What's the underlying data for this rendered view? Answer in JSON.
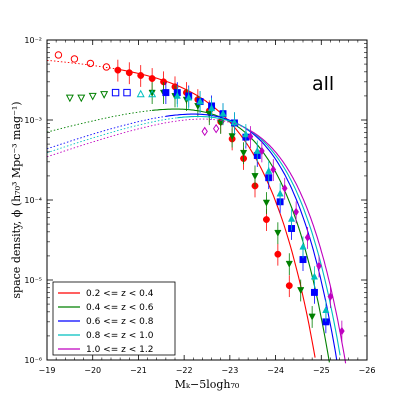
{
  "chart_data": {
    "type": "scatter",
    "title": "",
    "annotation": "all",
    "xlabel": "M_K−5logh_70",
    "xlabel_display": "Mₖ−5logh₇₀",
    "ylabel": "space density, ϕ (h₇₀³ Mpc⁻³ mag⁻¹)",
    "xlim": [
      -19,
      -26
    ],
    "ylim": [
      1e-06,
      0.01
    ],
    "yscale": "log",
    "grid": false,
    "legend_position": "lower-left",
    "x_ticks": [
      -19,
      -20,
      -21,
      -22,
      -23,
      -24,
      -25,
      -26
    ],
    "x_tick_labels": [
      "−19",
      "−20",
      "−21",
      "−22",
      "−23",
      "−24",
      "−25",
      "−26"
    ],
    "y_ticks": [
      1e-06,
      1e-05,
      0.0001,
      0.001,
      0.01
    ],
    "y_tick_labels": [
      "10⁻⁶",
      "10⁻⁵",
      "10⁻⁴",
      "10⁻³",
      "10⁻²"
    ],
    "series": [
      {
        "name": "0.2 <= z < 0.4",
        "color": "#ff0000",
        "marker": "circle",
        "fit": {
          "phi_star": 0.0045,
          "m_star": -22.6,
          "alpha": -1.1
        },
        "open_points": [
          {
            "x": -19.25,
            "y": 0.0065
          },
          {
            "x": -19.6,
            "y": 0.0058
          },
          {
            "x": -19.95,
            "y": 0.0051
          },
          {
            "x": -20.3,
            "y": 0.0046
          }
        ],
        "points": [
          {
            "x": -20.55,
            "y": 0.0042
          },
          {
            "x": -20.8,
            "y": 0.0039
          },
          {
            "x": -21.05,
            "y": 0.0036
          },
          {
            "x": -21.3,
            "y": 0.0033
          },
          {
            "x": -21.55,
            "y": 0.003
          },
          {
            "x": -21.8,
            "y": 0.0026
          },
          {
            "x": -22.05,
            "y": 0.0022
          },
          {
            "x": -22.3,
            "y": 0.0018
          },
          {
            "x": -22.55,
            "y": 0.0013
          },
          {
            "x": -22.8,
            "y": 0.00095
          },
          {
            "x": -23.05,
            "y": 0.00058
          },
          {
            "x": -23.3,
            "y": 0.00033
          },
          {
            "x": -23.55,
            "y": 0.00015
          },
          {
            "x": -23.8,
            "y": 5.7e-05
          },
          {
            "x": -24.05,
            "y": 2.1e-05
          },
          {
            "x": -24.3,
            "y": 8.5e-06
          }
        ]
      },
      {
        "name": "0.4 <= z < 0.6",
        "color": "#008000",
        "marker": "triangle-down",
        "fit": {
          "phi_star": 0.0032,
          "m_star": -22.8,
          "alpha": -0.6
        },
        "open_points": [
          {
            "x": -19.5,
            "y": 0.0019
          },
          {
            "x": -19.75,
            "y": 0.0019
          },
          {
            "x": -20.0,
            "y": 0.002
          },
          {
            "x": -20.25,
            "y": 0.0021
          }
        ],
        "points": [
          {
            "x": -21.3,
            "y": 0.0022
          },
          {
            "x": -21.55,
            "y": 0.0022
          },
          {
            "x": -21.8,
            "y": 0.002
          },
          {
            "x": -22.05,
            "y": 0.0018
          },
          {
            "x": -22.3,
            "y": 0.0015
          },
          {
            "x": -22.55,
            "y": 0.0012
          },
          {
            "x": -22.8,
            "y": 0.00093
          },
          {
            "x": -23.05,
            "y": 0.00063
          },
          {
            "x": -23.3,
            "y": 0.00039
          },
          {
            "x": -23.55,
            "y": 0.0002
          },
          {
            "x": -23.8,
            "y": 9.3e-05
          },
          {
            "x": -24.05,
            "y": 3.9e-05
          },
          {
            "x": -24.3,
            "y": 1.6e-05
          },
          {
            "x": -24.55,
            "y": 7.5e-06
          },
          {
            "x": -24.8,
            "y": 3.5e-06
          }
        ]
      },
      {
        "name": "0.6 <= z < 0.8",
        "color": "#0000ff",
        "marker": "square",
        "fit": {
          "phi_star": 0.003,
          "m_star": -22.95,
          "alpha": -0.5
        },
        "open_points": [
          {
            "x": -20.5,
            "y": 0.0022
          },
          {
            "x": -20.75,
            "y": 0.0022
          }
        ],
        "points": [
          {
            "x": -21.6,
            "y": 0.0022
          },
          {
            "x": -21.85,
            "y": 0.0022
          },
          {
            "x": -22.1,
            "y": 0.002
          },
          {
            "x": -22.35,
            "y": 0.0017
          },
          {
            "x": -22.6,
            "y": 0.0015
          },
          {
            "x": -22.85,
            "y": 0.0012
          },
          {
            "x": -23.1,
            "y": 0.00092
          },
          {
            "x": -23.35,
            "y": 0.00061
          },
          {
            "x": -23.6,
            "y": 0.00036
          },
          {
            "x": -23.85,
            "y": 0.00019
          },
          {
            "x": -24.1,
            "y": 9.5e-05
          },
          {
            "x": -24.35,
            "y": 4.4e-05
          },
          {
            "x": -24.6,
            "y": 1.8e-05
          },
          {
            "x": -24.85,
            "y": 7e-06
          },
          {
            "x": -25.1,
            "y": 3e-06
          }
        ]
      },
      {
        "name": "0.8 <= z < 1.0",
        "color": "#00bfbf",
        "marker": "triangle-up",
        "fit": {
          "phi_star": 0.0028,
          "m_star": -23.05,
          "alpha": -0.5
        },
        "open_points": [
          {
            "x": -21.05,
            "y": 0.0021
          },
          {
            "x": -21.3,
            "y": 0.0021
          }
        ],
        "points": [
          {
            "x": -21.85,
            "y": 0.002
          },
          {
            "x": -22.1,
            "y": 0.0019
          },
          {
            "x": -22.35,
            "y": 0.0017
          },
          {
            "x": -22.6,
            "y": 0.0014
          },
          {
            "x": -22.85,
            "y": 0.0012
          },
          {
            "x": -23.1,
            "y": 0.00093
          },
          {
            "x": -23.35,
            "y": 0.00066
          },
          {
            "x": -23.6,
            "y": 0.00041
          },
          {
            "x": -23.85,
            "y": 0.00023
          },
          {
            "x": -24.1,
            "y": 0.00012
          },
          {
            "x": -24.35,
            "y": 5.8e-05
          },
          {
            "x": -24.6,
            "y": 2.6e-05
          },
          {
            "x": -24.85,
            "y": 1.1e-05
          },
          {
            "x": -25.1,
            "y": 4.2e-06
          }
        ]
      },
      {
        "name": "1.0 <= z < 1.2",
        "color": "#bf00bf",
        "marker": "diamond",
        "fit": {
          "phi_star": 0.0026,
          "m_star": -23.15,
          "alpha": -0.5
        },
        "open_points": [
          {
            "x": -22.45,
            "y": 0.00072
          },
          {
            "x": -22.7,
            "y": 0.00078
          }
        ],
        "points": [
          {
            "x": -23.45,
            "y": 0.00062
          },
          {
            "x": -23.7,
            "y": 0.00041
          },
          {
            "x": -23.95,
            "y": 0.00024
          },
          {
            "x": -24.2,
            "y": 0.00014
          },
          {
            "x": -24.45,
            "y": 7.1e-05
          },
          {
            "x": -24.7,
            "y": 3.4e-05
          },
          {
            "x": -24.95,
            "y": 1.5e-05
          },
          {
            "x": -25.2,
            "y": 6.2e-06
          },
          {
            "x": -25.45,
            "y": 2.3e-06
          }
        ]
      }
    ]
  }
}
